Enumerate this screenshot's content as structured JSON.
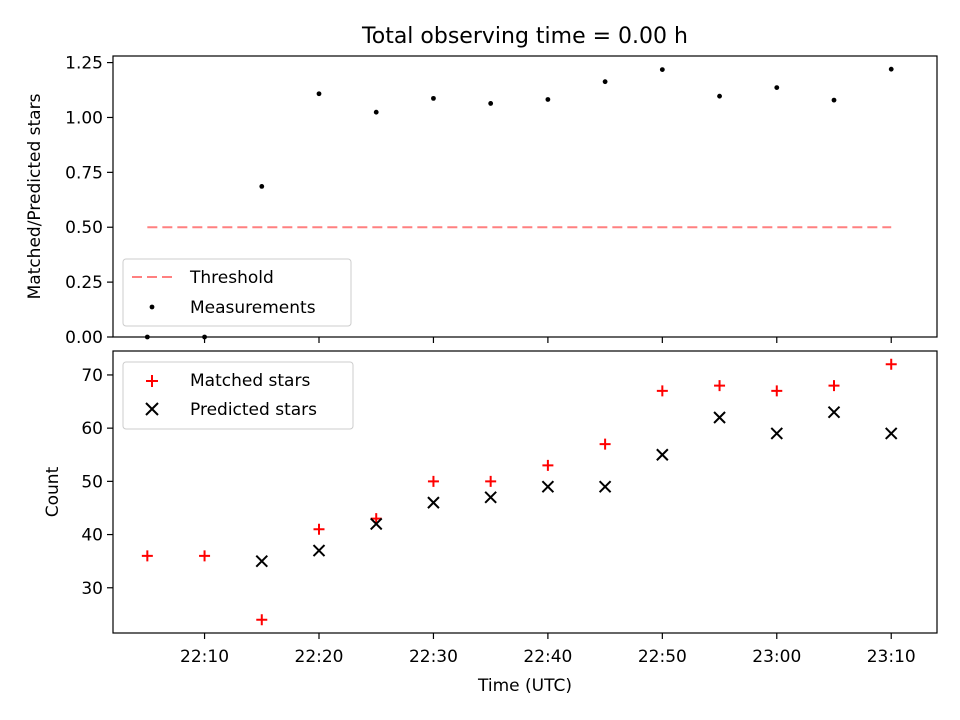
{
  "chart_data": [
    {
      "type": "scatter",
      "title": "Total observing time = 0.00 h",
      "ylabel": "Matched/Predicted stars",
      "ylim": [
        0,
        1.28
      ],
      "yticks": [
        0,
        0.25,
        0.5,
        0.75,
        1.0,
        1.25
      ],
      "ytick_labels": [
        "0.00",
        "0.25",
        "0.50",
        "0.75",
        "1.00",
        "1.25"
      ],
      "legend_position": "lower-left",
      "series": [
        {
          "name": "Threshold",
          "kind": "dashed-line",
          "color": "#ff8080",
          "x": [
            "22:05",
            "23:10"
          ],
          "y": [
            0.5,
            0.5
          ]
        },
        {
          "name": "Measurements",
          "kind": "dot",
          "color": "#000000",
          "x": [
            "22:05",
            "22:10",
            "22:15",
            "22:20",
            "22:25",
            "22:30",
            "22:35",
            "22:40",
            "22:45",
            "22:50",
            "22:55",
            "23:00",
            "23:05",
            "23:10"
          ],
          "y": [
            0.0,
            0.0,
            0.686,
            1.108,
            1.024,
            1.087,
            1.064,
            1.082,
            1.163,
            1.218,
            1.097,
            1.136,
            1.079,
            1.22
          ]
        }
      ]
    },
    {
      "type": "scatter",
      "xlabel": "Time (UTC)",
      "ylabel": "Count",
      "ylim": [
        21.5,
        74.5
      ],
      "yticks": [
        30,
        40,
        50,
        60,
        70
      ],
      "ytick_labels": [
        "30",
        "40",
        "50",
        "60",
        "70"
      ],
      "xlim": [
        "22:02",
        "23:14"
      ],
      "xticks": [
        "22:10",
        "22:20",
        "22:30",
        "22:40",
        "22:50",
        "23:00",
        "23:10"
      ],
      "legend_position": "upper-left",
      "series": [
        {
          "name": "Matched stars",
          "kind": "plus",
          "color": "#ff0000",
          "x": [
            "22:05",
            "22:10",
            "22:15",
            "22:20",
            "22:25",
            "22:30",
            "22:35",
            "22:40",
            "22:45",
            "22:50",
            "22:55",
            "23:00",
            "23:05",
            "23:10"
          ],
          "y": [
            36,
            36,
            24,
            41,
            43,
            50,
            50,
            53,
            57,
            67,
            68,
            67,
            68,
            72
          ]
        },
        {
          "name": "Predicted stars",
          "kind": "cross",
          "color": "#000000",
          "x": [
            "22:15",
            "22:20",
            "22:25",
            "22:30",
            "22:35",
            "22:40",
            "22:45",
            "22:50",
            "22:55",
            "23:00",
            "23:05",
            "23:10"
          ],
          "y": [
            35,
            37,
            42,
            46,
            47,
            49,
            49,
            55,
            62,
            59,
            63,
            59
          ]
        }
      ]
    }
  ]
}
